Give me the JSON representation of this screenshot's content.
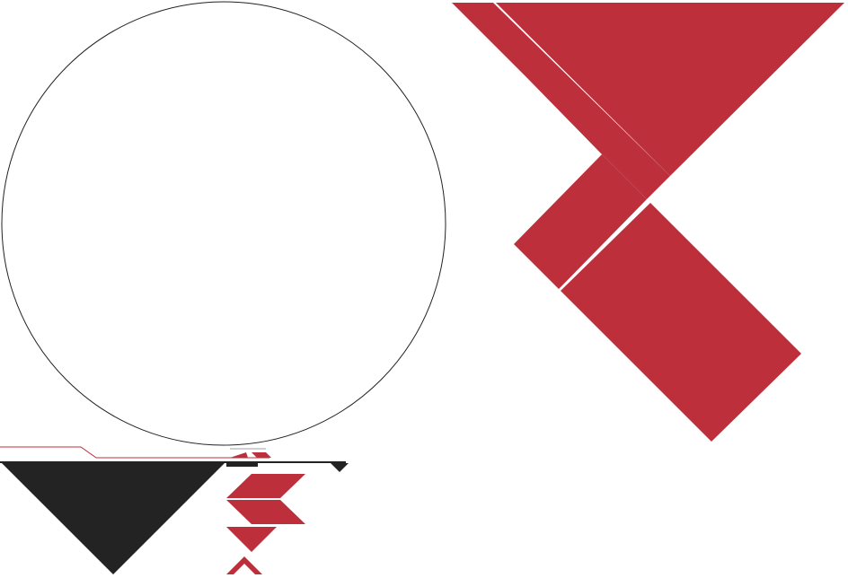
{
  "colors": {
    "background": "#ffffff",
    "circle_stroke": "#222222",
    "red": "#bc2f3b",
    "dark": "#232323",
    "thin_red_line": "#bc2f3b",
    "divider_gray": "#cfcfcf"
  },
  "shapes": {
    "big_circle": "outlined-circle",
    "big_red_shape": "red-chevron-tangram",
    "dark_triangle": "black-down-triangle",
    "small_red_pieces": "stacked-red-chevrons"
  }
}
